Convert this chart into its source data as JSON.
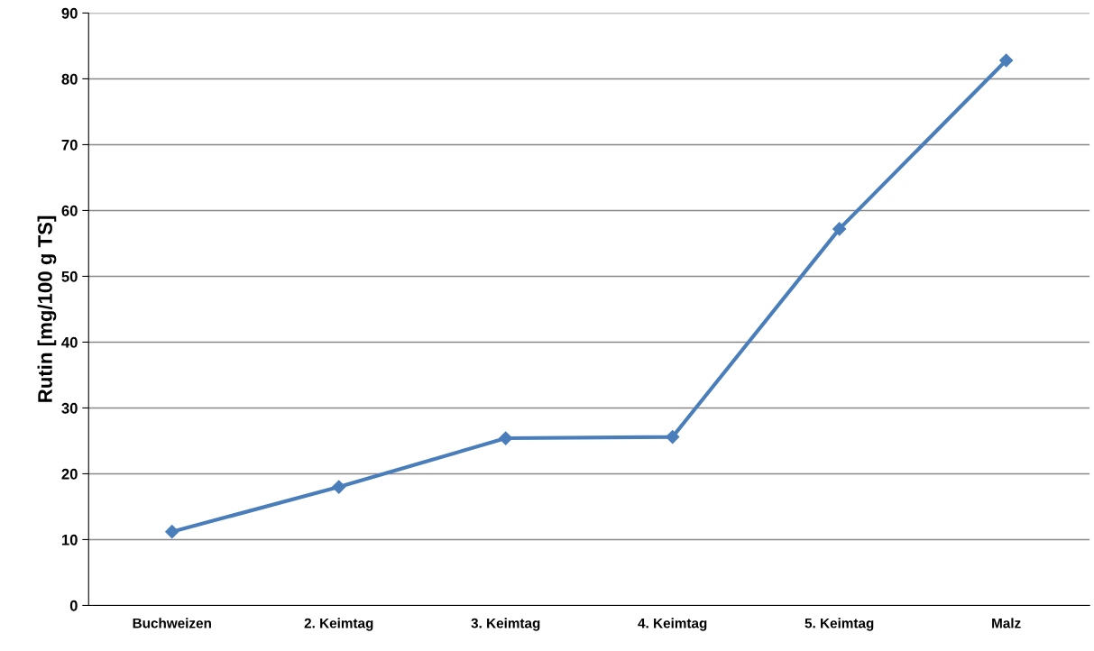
{
  "chart_data": {
    "type": "line",
    "ylabel": "Rutin [mg/100 g TS]",
    "categories": [
      "Buchweizen",
      "2. Keimtag",
      "3. Keimtag",
      "4. Keimtag",
      "5. Keimtag",
      "Malz"
    ],
    "series": [
      {
        "color": "#4a7ebb",
        "values": [
          11.2,
          18.0,
          25.4,
          25.6,
          57.2,
          82.8
        ]
      }
    ],
    "ylim": [
      0,
      90
    ],
    "yticks": [
      0,
      10,
      20,
      30,
      40,
      50,
      60,
      70,
      80,
      90
    ],
    "grid": "y",
    "legend": false,
    "marker": "diamond",
    "line_style": "solid"
  }
}
